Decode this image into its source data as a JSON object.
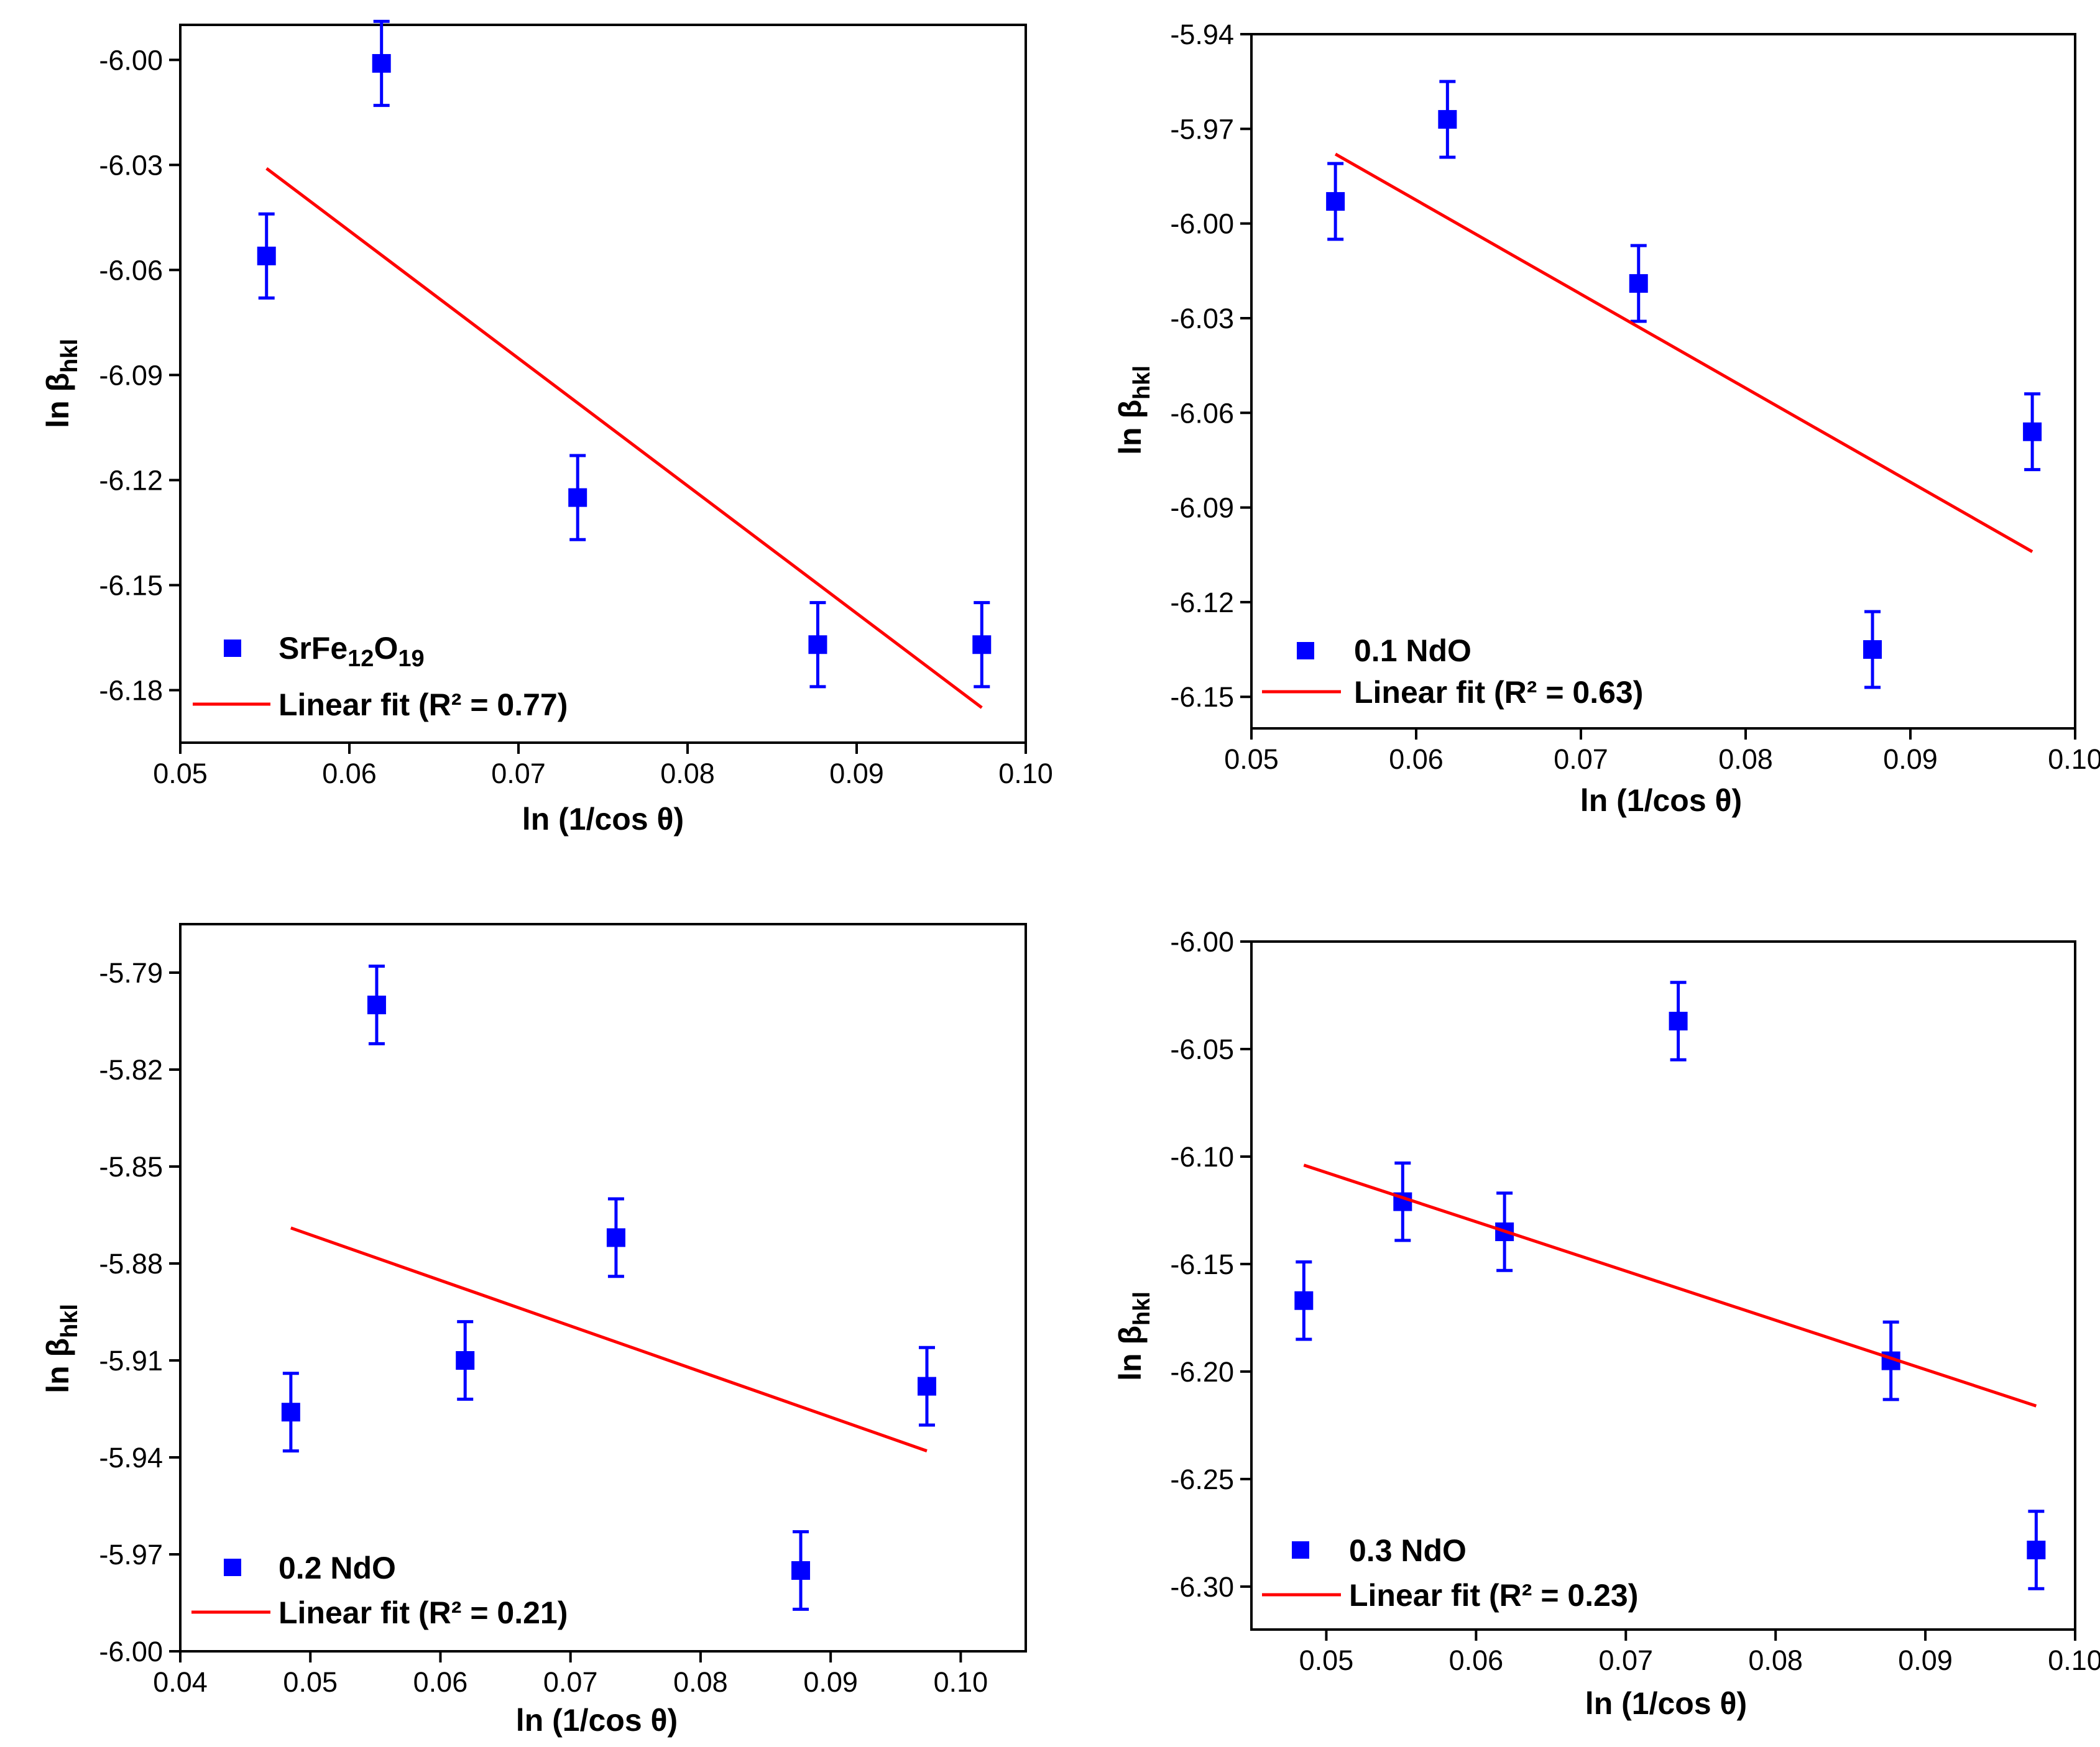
{
  "colors": {
    "marker": "#0000FF",
    "fit_line": "#FF0000",
    "axis": "#000000"
  },
  "chart_data": [
    {
      "type": "scatter",
      "xlabel": "ln (1/cos θ)",
      "ylabel_base": "ln β",
      "ylabel_sub": "hkl",
      "xlim": [
        0.05,
        0.1
      ],
      "ylim": [
        -6.195,
        -5.99
      ],
      "xticks": [
        0.05,
        0.06,
        0.07,
        0.08,
        0.09,
        0.1
      ],
      "xtick_labels": [
        "0.05",
        "0.06",
        "0.07",
        "0.08",
        "0.09",
        "0.10"
      ],
      "yticks": [
        -6.0,
        -6.03,
        -6.06,
        -6.09,
        -6.12,
        -6.15,
        -6.18
      ],
      "ytick_labels": [
        "-6.00",
        "-6.03",
        "-6.06",
        "-6.09",
        "-6.12",
        "-6.15",
        "-6.18"
      ],
      "points": [
        {
          "x": 0.0551,
          "y": -6.056,
          "err": 0.012
        },
        {
          "x": 0.0619,
          "y": -6.001,
          "err": 0.012
        },
        {
          "x": 0.0735,
          "y": -6.125,
          "err": 0.012
        },
        {
          "x": 0.0877,
          "y": -6.167,
          "err": 0.012
        },
        {
          "x": 0.0974,
          "y": -6.167,
          "err": 0.012
        }
      ],
      "fit": {
        "x": [
          0.0551,
          0.0974
        ],
        "y": [
          -6.031,
          -6.185
        ]
      },
      "legend": {
        "series_base": "SrFe",
        "series_sub1": "12",
        "series_mid": "O",
        "series_sub2": "19",
        "fit_label": "Linear fit (R² = 0.77)"
      }
    },
    {
      "type": "scatter",
      "xlabel": "ln (1/cos θ)",
      "ylabel_base": "ln β",
      "ylabel_sub": "hkl",
      "xlim": [
        0.05,
        0.1
      ],
      "ylim": [
        -6.16,
        -5.94
      ],
      "xticks": [
        0.05,
        0.06,
        0.07,
        0.08,
        0.09,
        0.1
      ],
      "xtick_labels": [
        "0.05",
        "0.06",
        "0.07",
        "0.08",
        "0.09",
        "0.10"
      ],
      "yticks": [
        -5.94,
        -5.97,
        -6.0,
        -6.03,
        -6.06,
        -6.09,
        -6.12,
        -6.15
      ],
      "ytick_labels": [
        "-5.94",
        "-5.97",
        "-6.00",
        "-6.03",
        "-6.06",
        "-6.09",
        "-6.12",
        "-6.15"
      ],
      "points": [
        {
          "x": 0.0551,
          "y": -5.993,
          "err": 0.012
        },
        {
          "x": 0.0619,
          "y": -5.967,
          "err": 0.012
        },
        {
          "x": 0.0735,
          "y": -6.019,
          "err": 0.012
        },
        {
          "x": 0.0877,
          "y": -6.135,
          "err": 0.012
        },
        {
          "x": 0.0974,
          "y": -6.066,
          "err": 0.012
        }
      ],
      "fit": {
        "x": [
          0.0551,
          0.0974
        ],
        "y": [
          -5.978,
          -6.104
        ]
      },
      "legend": {
        "series_label": "0.1 NdO",
        "fit_label": "Linear fit (R² = 0.63)"
      }
    },
    {
      "type": "scatter",
      "xlabel": "ln (1/cos θ)",
      "ylabel_base": "ln β",
      "ylabel_sub": "hkl",
      "xlim": [
        0.04,
        0.105
      ],
      "ylim": [
        -6.0,
        -5.775
      ],
      "xticks": [
        0.04,
        0.05,
        0.06,
        0.07,
        0.08,
        0.09,
        0.1
      ],
      "xtick_labels": [
        "0.04",
        "0.05",
        "0.06",
        "0.07",
        "0.08",
        "0.09",
        "0.10"
      ],
      "yticks": [
        -5.79,
        -5.82,
        -5.85,
        -5.88,
        -5.91,
        -5.94,
        -5.97,
        -6.0
      ],
      "ytick_labels": [
        "-5.79",
        "-5.82",
        "-5.85",
        "-5.88",
        "-5.91",
        "-5.94",
        "-5.97",
        "-6.00"
      ],
      "points": [
        {
          "x": 0.0485,
          "y": -5.926,
          "err": 0.012
        },
        {
          "x": 0.0551,
          "y": -5.8,
          "err": 0.012
        },
        {
          "x": 0.0619,
          "y": -5.91,
          "err": 0.012
        },
        {
          "x": 0.0735,
          "y": -5.872,
          "err": 0.012
        },
        {
          "x": 0.0877,
          "y": -5.975,
          "err": 0.012
        },
        {
          "x": 0.0974,
          "y": -5.918,
          "err": 0.012
        }
      ],
      "fit": {
        "x": [
          0.0485,
          0.0974
        ],
        "y": [
          -5.869,
          -5.938
        ]
      },
      "legend": {
        "series_label": "0.2 NdO",
        "fit_label": "Linear fit (R² = 0.21)"
      }
    },
    {
      "type": "scatter",
      "xlabel": "ln (1/cos θ)",
      "ylabel_base": "ln β",
      "ylabel_sub": "hkl",
      "xlim": [
        0.045,
        0.1
      ],
      "ylim": [
        -6.32,
        -6.0
      ],
      "xticks": [
        0.05,
        0.06,
        0.07,
        0.08,
        0.09,
        0.1
      ],
      "xtick_labels": [
        "0.05",
        "0.06",
        "0.07",
        "0.08",
        "0.09",
        "0.10"
      ],
      "yticks": [
        -6.0,
        -6.05,
        -6.1,
        -6.15,
        -6.2,
        -6.25,
        -6.3
      ],
      "ytick_labels": [
        "-6.00",
        "-6.05",
        "-6.10",
        "-6.15",
        "-6.20",
        "-6.25",
        "-6.30"
      ],
      "points": [
        {
          "x": 0.0485,
          "y": -6.167,
          "err": 0.018
        },
        {
          "x": 0.0551,
          "y": -6.121,
          "err": 0.018
        },
        {
          "x": 0.0619,
          "y": -6.135,
          "err": 0.018
        },
        {
          "x": 0.0735,
          "y": -6.037,
          "err": 0.018
        },
        {
          "x": 0.0877,
          "y": -6.195,
          "err": 0.018
        },
        {
          "x": 0.0974,
          "y": -6.283,
          "err": 0.018
        }
      ],
      "fit": {
        "x": [
          0.0485,
          0.0974
        ],
        "y": [
          -6.104,
          -6.216
        ]
      },
      "legend": {
        "series_label": "0.3 NdO",
        "fit_label": "Linear fit (R² = 0.23)"
      }
    }
  ]
}
